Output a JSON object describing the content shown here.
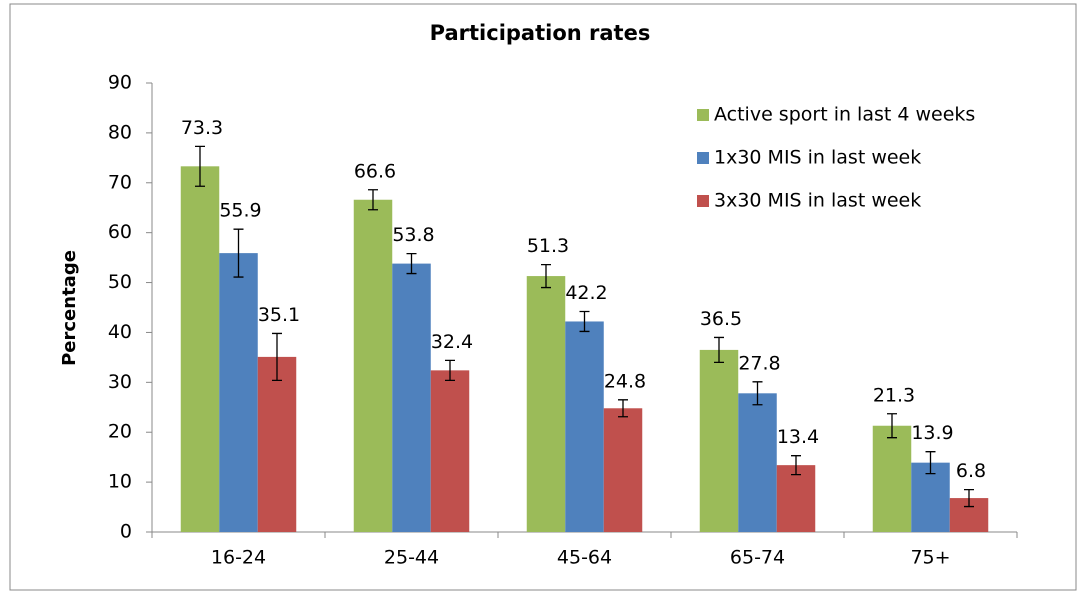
{
  "chart_data": {
    "type": "bar",
    "title": "Participation rates",
    "y_label": "Percentage",
    "categories": [
      "16-24",
      "25-44",
      "45-64",
      "65-74",
      "75+"
    ],
    "series": [
      {
        "name": "Active sport in last 4 weeks",
        "color": "#9bbb59",
        "values": [
          73.3,
          66.6,
          51.3,
          36.5,
          21.3
        ],
        "errors": [
          4,
          2,
          2.3,
          2.5,
          2.4
        ]
      },
      {
        "name": "1x30 MIS in last week",
        "color": "#4f81bd",
        "values": [
          55.9,
          53.8,
          42.2,
          27.8,
          13.9
        ],
        "errors": [
          4.8,
          2,
          2,
          2.3,
          2.2
        ]
      },
      {
        "name": "3x30 MIS in last week",
        "color": "#c0504d",
        "values": [
          35.1,
          32.4,
          24.8,
          13.4,
          6.8
        ],
        "errors": [
          4.7,
          2,
          1.7,
          1.9,
          1.7
        ]
      }
    ],
    "ylim": [
      0,
      90
    ],
    "yticks": [
      0,
      10,
      20,
      30,
      40,
      50,
      60,
      70,
      80,
      90
    ],
    "grid": false,
    "legend": "top-right"
  }
}
